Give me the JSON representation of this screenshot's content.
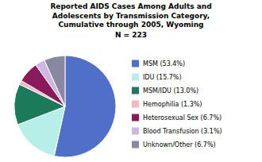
{
  "chart_data": {
    "type": "pie",
    "title": [
      "Reported AIDS Cases Among Adults and",
      "Adolescents by Transmission Category,",
      "Cumulative through 2005, Wyoming"
    ],
    "subtitle": "N = 223",
    "categories": [
      "MSM (53.4%)",
      "IDU (15.7%)",
      "MSM/IDU (13.0%)",
      "Hemophilia (1.3%)",
      "Heterosexual Sex (6.7%)",
      "Blood Transfusion (3.1%)",
      "Unknown/Other (6.7%)"
    ],
    "values": [
      53.4,
      15.7,
      13.0,
      1.3,
      6.7,
      3.1,
      6.7
    ],
    "colors": [
      "#4f6fc8",
      "#b8eee8",
      "#1a7a5a",
      "#f4b8c0",
      "#8b1a5a",
      "#ccb8e0",
      "#8888a0"
    ],
    "legend": "right"
  }
}
